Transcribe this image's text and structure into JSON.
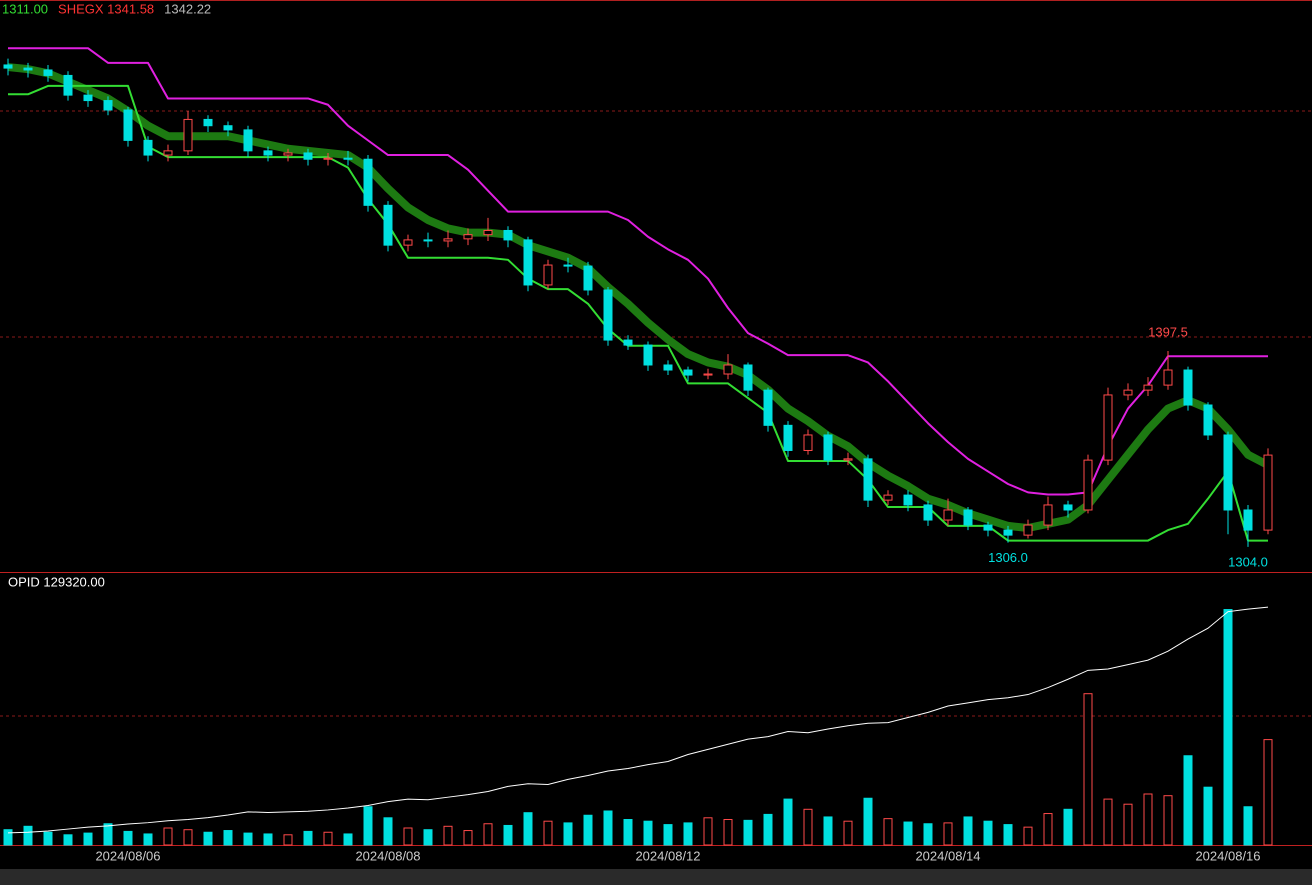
{
  "chart_data": [
    {
      "type": "candlestick",
      "header": [
        {
          "text": "1311.00",
          "color": "#33dd33"
        },
        {
          "text": "SHEGX 1341.58",
          "color": "#ff3333"
        },
        {
          "text": "1342.22",
          "color": "#bbbbbb"
        }
      ],
      "categories": [
        null,
        null,
        null,
        null,
        null,
        null,
        "2024/08/06",
        null,
        null,
        null,
        null,
        null,
        null,
        null,
        null,
        null,
        null,
        null,
        null,
        "2024/08/08",
        null,
        null,
        null,
        null,
        null,
        null,
        null,
        null,
        null,
        null,
        null,
        null,
        null,
        "2024/08/12",
        null,
        null,
        null,
        null,
        null,
        null,
        null,
        null,
        null,
        null,
        null,
        null,
        null,
        "2024/08/14",
        null,
        null,
        null,
        null,
        null,
        null,
        null,
        null,
        null,
        null,
        null,
        null,
        null,
        "2024/08/16",
        null,
        null
      ],
      "open": [
        1534,
        1532.5,
        1531.6,
        1529,
        1519.6,
        1517,
        1512.5,
        1498,
        1491,
        1493,
        1508,
        1505,
        1503,
        1493,
        1491,
        1492,
        1489,
        1489.5,
        1489,
        1467,
        1448,
        1450.5,
        1450,
        1451,
        1453,
        1455,
        1450.5,
        1429,
        1438.5,
        1438,
        1426.6,
        1402.7,
        1400.3,
        1390.8,
        1388.4,
        1386,
        1386.5,
        1390.8,
        1378.8,
        1362,
        1350,
        1357.4,
        1345.4,
        1346,
        1326.3,
        1328.7,
        1324,
        1316.8,
        1321.6,
        1314.4,
        1312,
        1309.6,
        1314.4,
        1324,
        1321.6,
        1345.4,
        1376.5,
        1378.8,
        1381.2,
        1388.4,
        1371.7,
        1357.4,
        1321.6,
        1312
      ],
      "high": [
        1537,
        1535,
        1534,
        1531,
        1522,
        1519,
        1514,
        1500,
        1496,
        1512,
        1510,
        1507,
        1505,
        1495,
        1494,
        1494,
        1492,
        1493,
        1491,
        1469,
        1453,
        1454,
        1455,
        1456,
        1461,
        1457,
        1452,
        1441,
        1442,
        1440,
        1428,
        1405,
        1402,
        1393,
        1390,
        1389,
        1396,
        1392,
        1380,
        1364,
        1360,
        1359,
        1349,
        1348,
        1331,
        1331,
        1326,
        1327,
        1323,
        1316,
        1314,
        1317,
        1328,
        1326,
        1348,
        1380,
        1382,
        1385,
        1397.5,
        1390,
        1373,
        1359,
        1324,
        1351
      ],
      "low": [
        1529,
        1528,
        1526,
        1517,
        1514,
        1510,
        1495,
        1488,
        1488,
        1491,
        1502,
        1500,
        1490,
        1488,
        1488,
        1486,
        1486,
        1486,
        1464,
        1445,
        1445,
        1447,
        1447,
        1448,
        1450,
        1447,
        1426,
        1427,
        1435,
        1424,
        1400,
        1398,
        1388,
        1386,
        1383,
        1384,
        1384,
        1376,
        1359,
        1347,
        1348,
        1343,
        1343,
        1323,
        1324,
        1321,
        1314,
        1314,
        1312,
        1309,
        1306,
        1308,
        1312,
        1318,
        1320,
        1343,
        1374,
        1376,
        1379,
        1369,
        1355,
        1310,
        1304,
        1310
      ],
      "close": [
        1532.5,
        1531.6,
        1529,
        1519.6,
        1517,
        1512.5,
        1498,
        1491,
        1493,
        1508,
        1505,
        1503,
        1493,
        1491,
        1492,
        1489,
        1489.5,
        1489,
        1467,
        1448,
        1450.5,
        1450,
        1451,
        1453,
        1455,
        1450.5,
        1429,
        1438.5,
        1438,
        1426.6,
        1402.7,
        1400.3,
        1390.8,
        1388.4,
        1386,
        1386.5,
        1390.8,
        1378.8,
        1362,
        1350,
        1357.4,
        1345.4,
        1346,
        1326.3,
        1328.7,
        1324,
        1316.8,
        1321.6,
        1314.4,
        1312,
        1309.6,
        1314.4,
        1324,
        1321.6,
        1345.4,
        1376.5,
        1378.8,
        1381.2,
        1388.4,
        1371.7,
        1357.4,
        1321.6,
        1312,
        1347.8
      ],
      "up_color": "#ff4a4a",
      "down_color": "#00e0e0",
      "ylim": [
        1292,
        1565
      ],
      "series": [
        {
          "color": "#1d7a12",
          "width": 8,
          "values": [
            1533,
            1532,
            1530,
            1526,
            1522,
            1518,
            1512,
            1505,
            1500,
            1500,
            1500,
            1500,
            1498,
            1496,
            1494,
            1493,
            1492,
            1491,
            1485,
            1475,
            1466,
            1460,
            1456,
            1454,
            1454,
            1453,
            1448,
            1445,
            1442,
            1437,
            1428,
            1420,
            1411,
            1403,
            1396,
            1392,
            1390,
            1386,
            1379,
            1370,
            1364,
            1357,
            1352,
            1344,
            1338,
            1333,
            1327,
            1324,
            1320,
            1317,
            1314,
            1313,
            1315,
            1317,
            1324,
            1336,
            1348,
            1360,
            1370,
            1374,
            1370,
            1360,
            1348,
            1343
          ]
        },
        {
          "color": "#e020e0",
          "width": 2,
          "values": [
            1542,
            1542,
            1542,
            1542,
            1542,
            1535,
            1535,
            1535,
            1518,
            1518,
            1518,
            1518,
            1518,
            1518,
            1518,
            1518,
            1515,
            1505,
            1498,
            1491,
            1491,
            1491,
            1491,
            1484,
            1474,
            1464,
            1464,
            1464,
            1464,
            1464,
            1464,
            1460,
            1452,
            1446,
            1441,
            1432,
            1418,
            1406,
            1401,
            1395.5,
            1395.5,
            1395.5,
            1395.5,
            1392,
            1383,
            1373,
            1363,
            1354,
            1346,
            1340,
            1334,
            1330,
            1329,
            1329,
            1330,
            1352,
            1370,
            1381,
            1395,
            1395,
            1395,
            1395,
            1395,
            1395
          ]
        },
        {
          "color": "#33dd33",
          "width": 2,
          "values": [
            1520,
            1520,
            1524,
            1524,
            1524,
            1524,
            1524,
            1495,
            1490,
            1490,
            1490,
            1490,
            1490,
            1490,
            1490,
            1490,
            1490,
            1485,
            1470,
            1458,
            1442,
            1442,
            1442,
            1442,
            1442,
            1441,
            1432,
            1427,
            1427,
            1420,
            1408,
            1400,
            1400,
            1400,
            1382,
            1382,
            1382,
            1375,
            1368,
            1345,
            1345,
            1345,
            1345,
            1336,
            1323,
            1323,
            1323,
            1314,
            1314,
            1314,
            1307,
            1307,
            1307,
            1307,
            1307,
            1307,
            1307,
            1307,
            1312,
            1315,
            1327,
            1340,
            1307,
            1307
          ]
        }
      ],
      "annotations": [
        {
          "value": 1397.5,
          "label": "1397.5",
          "color": "#ff4a4a"
        },
        {
          "value": 1306,
          "label": "1306.0",
          "color": "#00e0e0"
        },
        {
          "value": 1304,
          "label": "1304.0",
          "color": "#00e0e0"
        }
      ]
    },
    {
      "type": "volume",
      "label": "OPID 129320.00",
      "values": [
        1800,
        2200,
        1500,
        1200,
        1400,
        2500,
        1600,
        1300,
        2000,
        1800,
        1500,
        1700,
        1400,
        1300,
        1200,
        1600,
        1500,
        1300,
        4500,
        3200,
        2000,
        1800,
        2200,
        1700,
        2500,
        2300,
        3800,
        2800,
        2600,
        3500,
        4000,
        3000,
        2800,
        2400,
        2600,
        3200,
        3000,
        2900,
        3600,
        5400,
        4200,
        3300,
        2800,
        5500,
        3100,
        2700,
        2500,
        2600,
        3300,
        2800,
        2400,
        2100,
        3700,
        4200,
        17800,
        5400,
        4800,
        6000,
        5800,
        10500,
        6800,
        27700,
        4500,
        12400
      ],
      "ylim": [
        0,
        30000
      ],
      "y2lim": [
        92000,
        132000
      ],
      "series": [
        {
          "color": "#ffffff",
          "axis": "y2",
          "values": [
            93900,
            94000,
            94200,
            94500,
            94800,
            95000,
            95300,
            95500,
            95800,
            96000,
            96300,
            96700,
            97200,
            97100,
            97200,
            97300,
            97500,
            97800,
            98200,
            98800,
            99200,
            99100,
            99500,
            99900,
            100400,
            101200,
            101600,
            101500,
            102300,
            102900,
            103600,
            104000,
            104600,
            105100,
            106200,
            107000,
            107800,
            108600,
            109000,
            109800,
            109600,
            110200,
            110700,
            111100,
            111200,
            112000,
            112800,
            113800,
            114300,
            114800,
            115100,
            115600,
            116700,
            118000,
            119400,
            119600,
            120300,
            121000,
            122400,
            124300,
            126000,
            128600,
            129000,
            129320
          ]
        }
      ]
    }
  ]
}
